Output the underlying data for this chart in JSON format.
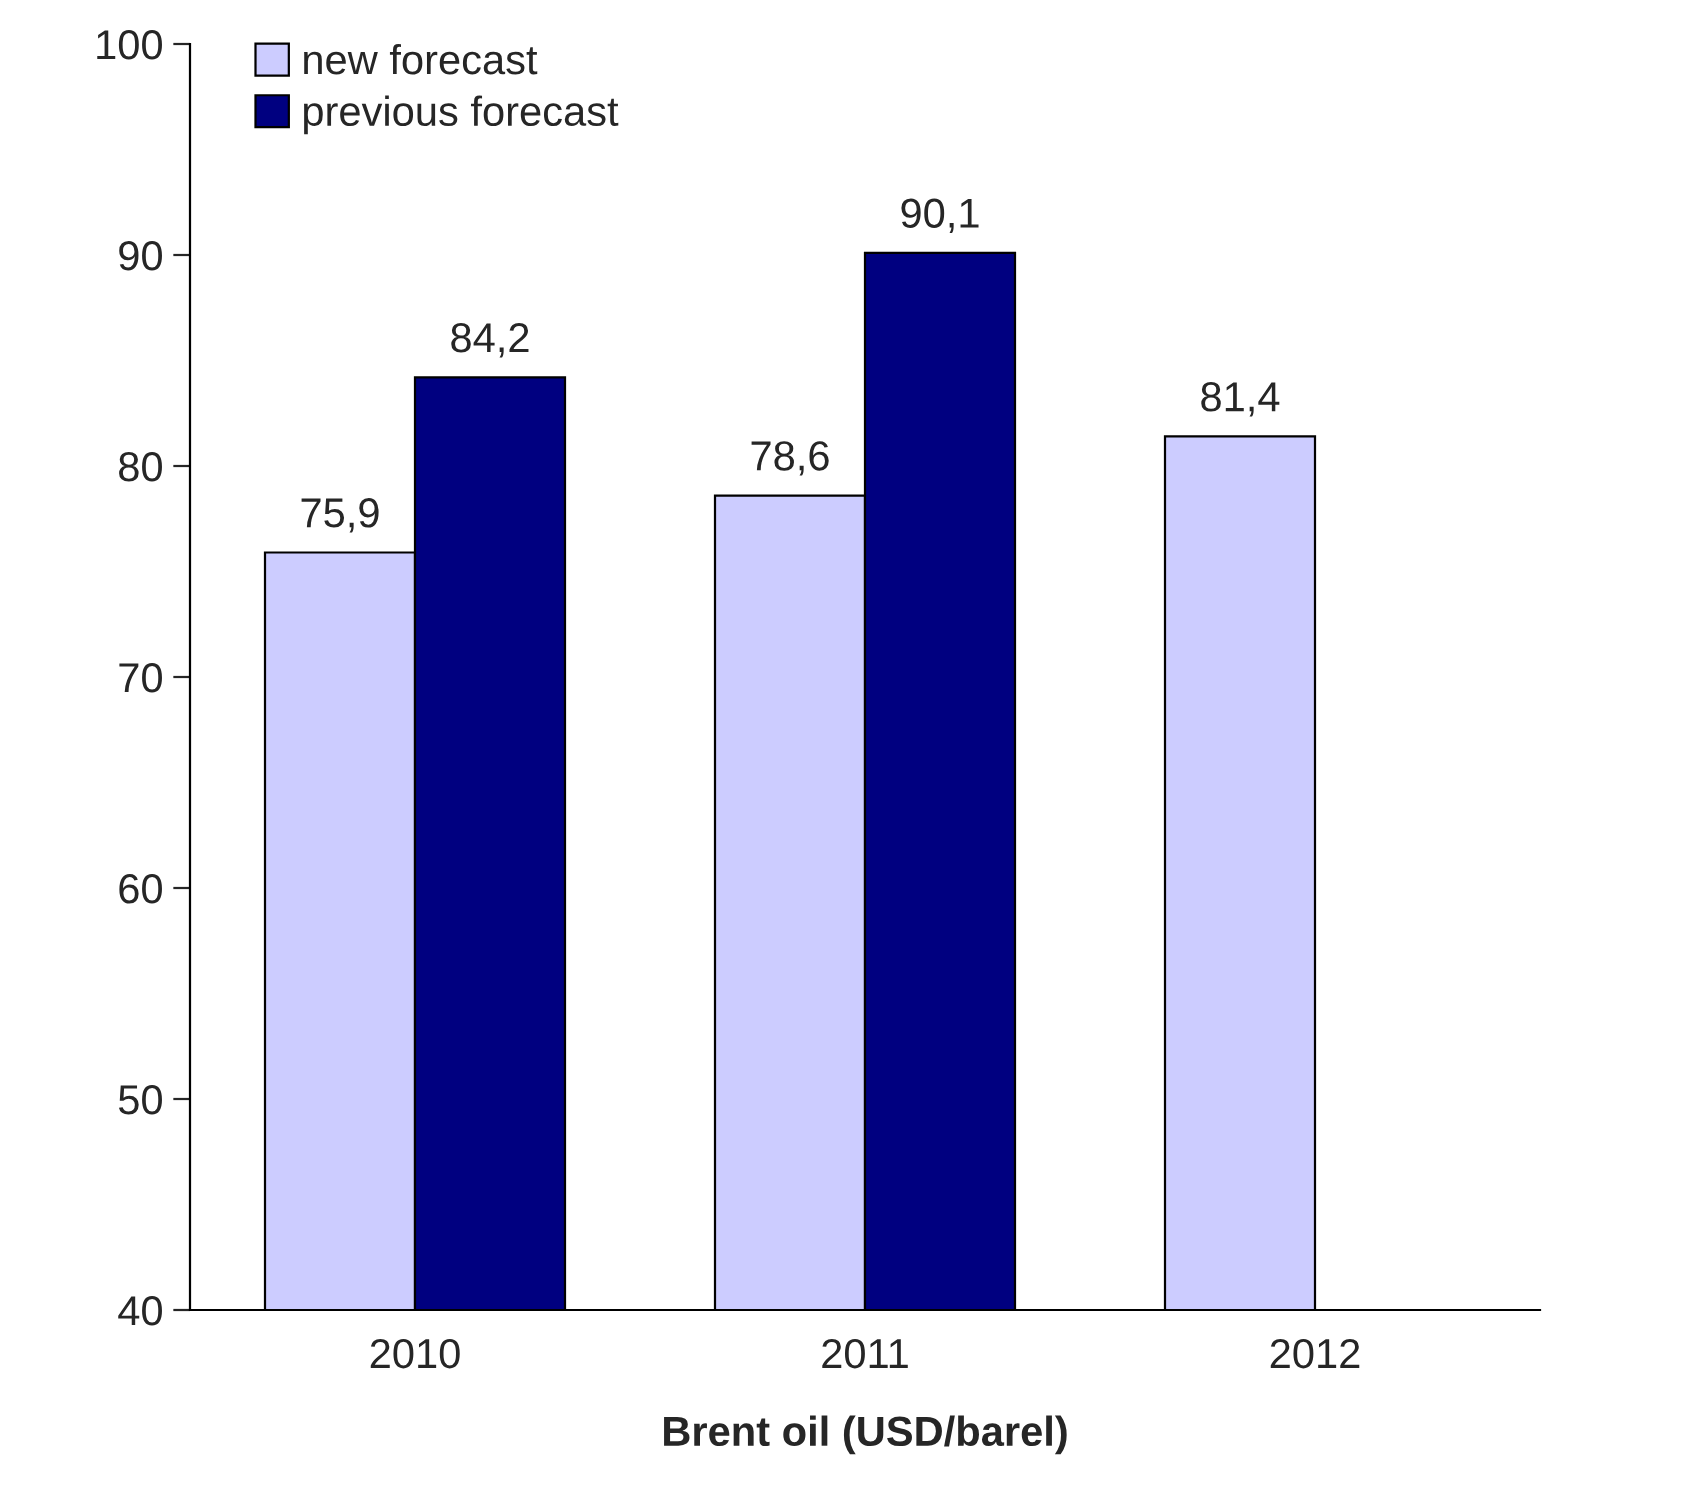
{
  "chart_data": {
    "type": "bar",
    "xlabel": "Brent oil (USD/barel)",
    "categories": [
      "2010",
      "2011",
      "2012"
    ],
    "series": [
      {
        "name": "new forecast",
        "color": "#ccccff",
        "values": [
          75.9,
          78.6,
          81.4
        ],
        "value_labels": [
          "75,9",
          "78,6",
          "81,4"
        ]
      },
      {
        "name": "previous forecast",
        "color": "#000080",
        "values": [
          84.2,
          90.1,
          null
        ],
        "value_labels": [
          "84,2",
          "90,1",
          null
        ]
      }
    ],
    "ylim": [
      40,
      100
    ],
    "yticks": [
      40,
      50,
      60,
      70,
      80,
      90,
      100
    ],
    "grid": false,
    "legend": "top left"
  }
}
